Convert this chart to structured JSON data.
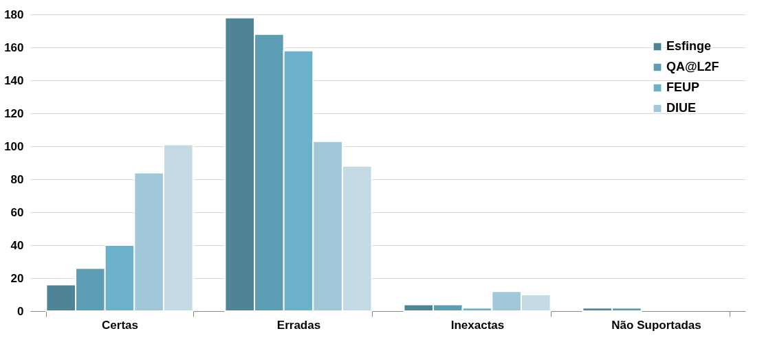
{
  "chart_data": {
    "type": "bar",
    "categories": [
      "Certas",
      "Erradas",
      "Inexactas",
      "Não Suportadas"
    ],
    "series": [
      {
        "name": "Esfinge",
        "color": "#4f8496",
        "values": [
          16,
          178,
          4,
          2
        ]
      },
      {
        "name": "QA@L2F",
        "color": "#5d9db3",
        "values": [
          26,
          168,
          4,
          2
        ]
      },
      {
        "name": "FEUP",
        "color": "#6cb1cb",
        "values": [
          40,
          158,
          2,
          0
        ]
      },
      {
        "name": "DIUE",
        "color": "#a1c8d9",
        "values": [
          84,
          103,
          12,
          0
        ]
      },
      {
        "color": "#c3d9e3",
        "values": [
          101,
          88,
          10,
          0
        ]
      }
    ],
    "ylim": [
      0,
      180
    ],
    "yticks": [
      0,
      20,
      40,
      60,
      80,
      100,
      120,
      140,
      160,
      180
    ],
    "grid": "y",
    "legend": "top right"
  }
}
